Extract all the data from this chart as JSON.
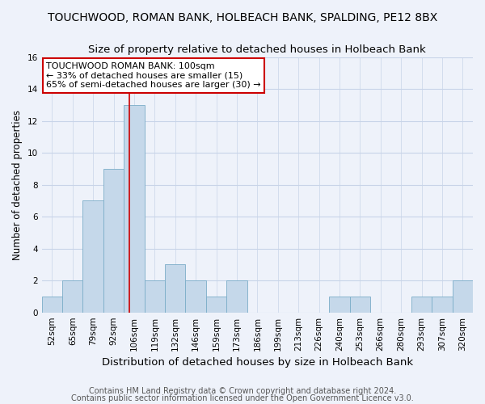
{
  "title": "TOUCHWOOD, ROMAN BANK, HOLBEACH BANK, SPALDING, PE12 8BX",
  "subtitle": "Size of property relative to detached houses in Holbeach Bank",
  "xlabel": "Distribution of detached houses by size in Holbeach Bank",
  "ylabel": "Number of detached properties",
  "bin_labels": [
    "52sqm",
    "65sqm",
    "79sqm",
    "92sqm",
    "106sqm",
    "119sqm",
    "132sqm",
    "146sqm",
    "159sqm",
    "173sqm",
    "186sqm",
    "199sqm",
    "213sqm",
    "226sqm",
    "240sqm",
    "253sqm",
    "266sqm",
    "280sqm",
    "293sqm",
    "307sqm",
    "320sqm"
  ],
  "bar_values": [
    1,
    2,
    7,
    9,
    13,
    2,
    3,
    2,
    1,
    2,
    0,
    0,
    0,
    0,
    1,
    1,
    0,
    0,
    1,
    1,
    2
  ],
  "bar_color": "#c5d8ea",
  "bar_edge_color": "#7badc8",
  "ylim": [
    0,
    16
  ],
  "yticks": [
    0,
    2,
    4,
    6,
    8,
    10,
    12,
    14,
    16
  ],
  "grid_color": "#c8d4e8",
  "background_color": "#eef2fa",
  "annotation_box_text": "TOUCHWOOD ROMAN BANK: 100sqm\n← 33% of detached houses are smaller (15)\n65% of semi-detached houses are larger (30) →",
  "annotation_box_edge_color": "#cc0000",
  "vline_color": "#cc0000",
  "vline_x": 3.77,
  "footer1": "Contains HM Land Registry data © Crown copyright and database right 2024.",
  "footer2": "Contains public sector information licensed under the Open Government Licence v3.0.",
  "title_fontsize": 10,
  "subtitle_fontsize": 9.5,
  "xlabel_fontsize": 9.5,
  "ylabel_fontsize": 8.5,
  "annotation_fontsize": 8,
  "footer_fontsize": 7,
  "tick_fontsize": 7.5
}
